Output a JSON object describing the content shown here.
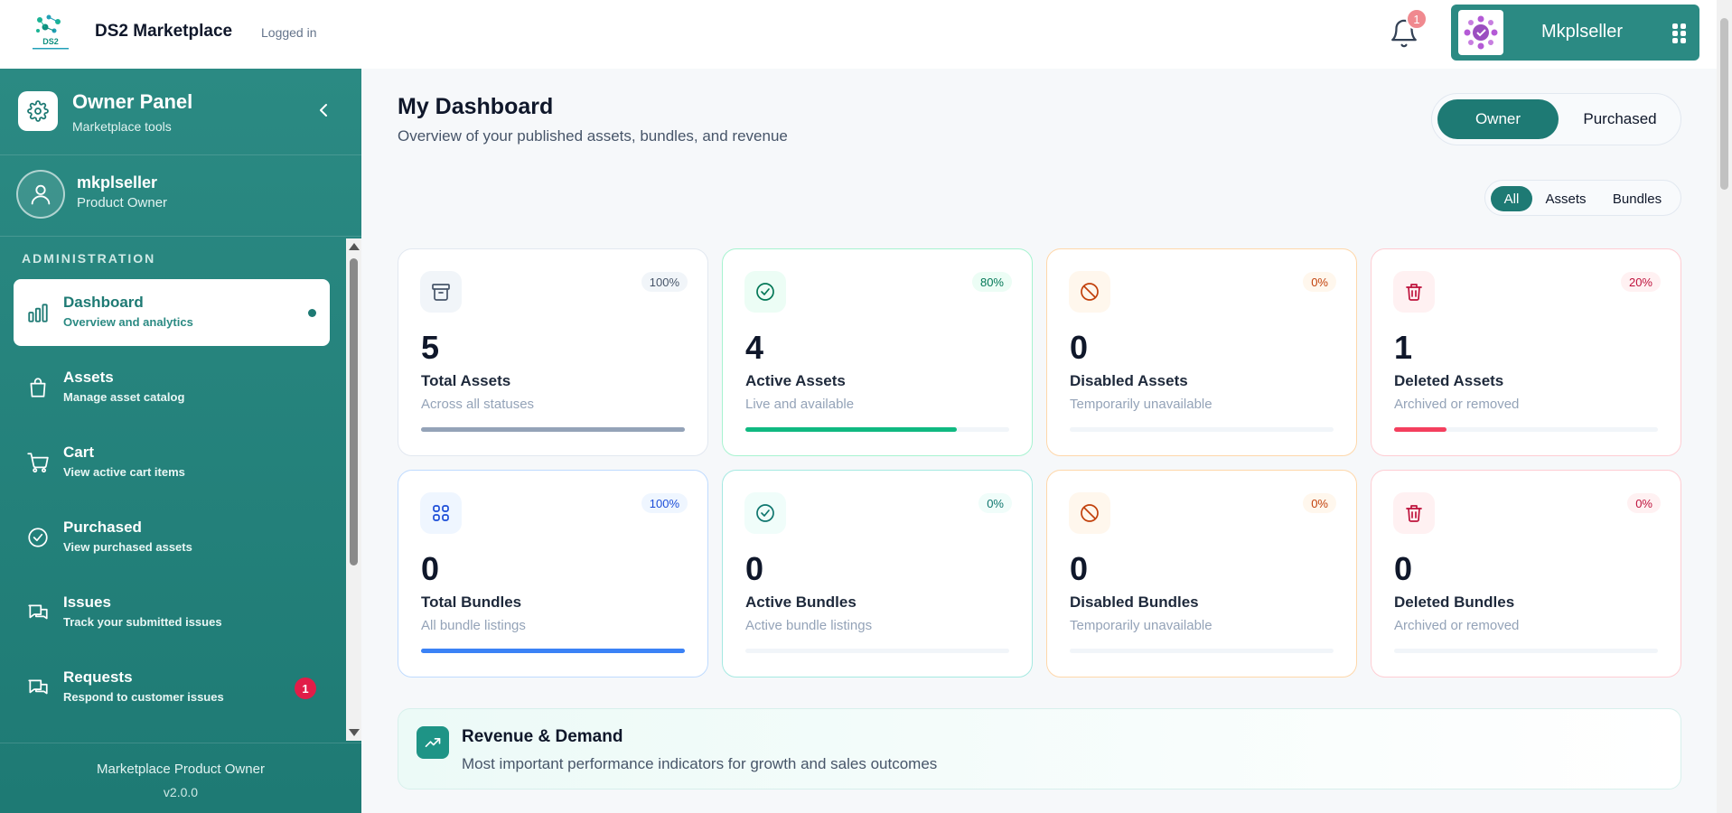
{
  "header": {
    "app_title": "DS2 Marketplace",
    "login_status": "Logged in",
    "notification_count": "1",
    "user_name": "Mkplseller"
  },
  "sidebar": {
    "panel_title": "Owner Panel",
    "panel_subtitle": "Marketplace tools",
    "profile_name": "mkplseller",
    "profile_role": "Product Owner",
    "section_label": "ADMINISTRATION",
    "items": [
      {
        "label": "Dashboard",
        "sub": "Overview and analytics",
        "icon": "bar-chart-icon",
        "active": true
      },
      {
        "label": "Assets",
        "sub": "Manage asset catalog",
        "icon": "shopping-bag-icon"
      },
      {
        "label": "Cart",
        "sub": "View active cart items",
        "icon": "cart-icon"
      },
      {
        "label": "Purchased",
        "sub": "View purchased assets",
        "icon": "check-circle-icon"
      },
      {
        "label": "Issues",
        "sub": "Track your submitted issues",
        "icon": "chat-icon"
      },
      {
        "label": "Requests",
        "sub": "Respond to customer issues",
        "icon": "chat-icon",
        "badge": "1"
      }
    ],
    "footer_name": "Marketplace Product Owner",
    "footer_version": "v2.0.0"
  },
  "main": {
    "title": "My Dashboard",
    "subtitle": "Overview of your published assets, bundles, and revenue",
    "role_toggle": {
      "owner": "Owner",
      "purchased": "Purchased",
      "selected": "Owner"
    },
    "filters": {
      "all": "All",
      "assets": "Assets",
      "bundles": "Bundles",
      "selected": "All"
    },
    "cards": [
      {
        "value": "5",
        "title": "Total Assets",
        "sub": "Across all statuses",
        "pct": "100%",
        "progress": 1.0,
        "icon": "archive-box-icon",
        "color": "#94a3b8"
      },
      {
        "value": "4",
        "title": "Active Assets",
        "sub": "Live and available",
        "pct": "80%",
        "progress": 0.8,
        "icon": "check-circle-icon",
        "color": "#10b981"
      },
      {
        "value": "0",
        "title": "Disabled Assets",
        "sub": "Temporarily unavailable",
        "pct": "0%",
        "progress": 0.0,
        "icon": "ban-icon",
        "color": "#ea580c"
      },
      {
        "value": "1",
        "title": "Deleted Assets",
        "sub": "Archived or removed",
        "pct": "20%",
        "progress": 0.2,
        "icon": "trash-icon",
        "color": "#f43f5e"
      },
      {
        "value": "0",
        "title": "Total Bundles",
        "sub": "All bundle listings",
        "pct": "100%",
        "progress": 1.0,
        "icon": "grid-icon",
        "color": "#3b82f6"
      },
      {
        "value": "0",
        "title": "Active Bundles",
        "sub": "Active bundle listings",
        "pct": "0%",
        "progress": 0.0,
        "icon": "check-circle-icon",
        "color": "#0d9488"
      },
      {
        "value": "0",
        "title": "Disabled Bundles",
        "sub": "Temporarily unavailable",
        "pct": "0%",
        "progress": 0.0,
        "icon": "ban-icon",
        "color": "#ea580c"
      },
      {
        "value": "0",
        "title": "Deleted Bundles",
        "sub": "Archived or removed",
        "pct": "0%",
        "progress": 0.0,
        "icon": "trash-icon",
        "color": "#f43f5e"
      }
    ],
    "revenue": {
      "title": "Revenue & Demand",
      "subtitle": "Most important performance indicators for growth and sales outcomes"
    }
  }
}
